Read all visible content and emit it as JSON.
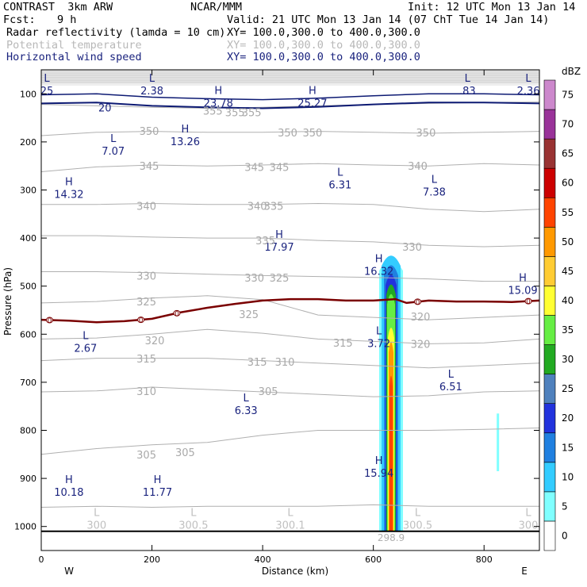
{
  "header": {
    "title": "CONTRAST  3km ARW",
    "source": "NCAR/MMM",
    "init": "Init: 12 UTC Mon 13 Jan 14",
    "fcst_label": "Fcst:",
    "fcst_value": "9 h",
    "valid": "Valid: 21 UTC Mon 13 Jan 14 (07 ChT Tue 14 Jan 14)",
    "fields": [
      {
        "name": "Radar reflectivity (lamda = 10 cm)",
        "xy": "XY= 100.0,300.0 to 400.0,300.0"
      },
      {
        "name": "Potential temperature",
        "xy": "XY= 100.0,300.0 to 400.0,300.0"
      },
      {
        "name": "Horizontal wind speed",
        "xy": "XY= 100.0,300.0 to 400.0,300.0"
      }
    ]
  },
  "chart_data": {
    "type": "cross-section",
    "xlabel": "Distance (km)",
    "ylabel": "Pressure (hPa)",
    "xlim": [
      0,
      900
    ],
    "ylim": [
      1050,
      50
    ],
    "x_ticks": [
      0,
      200,
      400,
      600,
      800
    ],
    "y_ticks": [
      100,
      200,
      300,
      400,
      500,
      600,
      700,
      800,
      900,
      1000
    ],
    "west_label": "W",
    "east_label": "E",
    "colorbar": {
      "unit": "dBZ",
      "levels": [
        0,
        5,
        10,
        15,
        20,
        25,
        30,
        35,
        40,
        45,
        50,
        55,
        60,
        65,
        70,
        75
      ],
      "colors": [
        "#ffffff",
        "#80ffff",
        "#33ccff",
        "#2080e0",
        "#2233dd",
        "#4f81bd",
        "#22aa22",
        "#66ee44",
        "#ffff33",
        "#ffcc33",
        "#ff9900",
        "#ff4400",
        "#cc0000",
        "#993333",
        "#993399",
        "#cc88cc"
      ]
    },
    "theta_contours": [
      {
        "value": 355,
        "p": [
          122,
          125,
          128,
          130,
          128,
          125,
          122,
          120,
          118,
          117
        ]
      },
      {
        "value": 350,
        "p": [
          187,
          180,
          178,
          180,
          180,
          178,
          180,
          182,
          180,
          178
        ]
      },
      {
        "value": 345,
        "p": [
          262,
          252,
          248,
          250,
          248,
          245,
          248,
          250,
          245,
          248
        ]
      },
      {
        "value": 340,
        "p": [
          330,
          330,
          328,
          330,
          330,
          328,
          330,
          340,
          345,
          340
        ]
      },
      {
        "value": 335,
        "p": [
          395,
          395,
          398,
          400,
          400,
          405,
          408,
          415,
          418,
          415
        ]
      },
      {
        "value": 330,
        "p": [
          470,
          470,
          472,
          475,
          478,
          480,
          482,
          485,
          490,
          490
        ]
      },
      {
        "value": 325,
        "p": [
          535,
          532,
          525,
          520,
          528,
          560,
          565,
          570,
          565,
          560
        ]
      },
      {
        "value": 320,
        "p": [
          610,
          608,
          600,
          590,
          598,
          610,
          615,
          620,
          618,
          610
        ]
      },
      {
        "value": 315,
        "p": [
          655,
          650,
          650,
          650,
          655,
          660,
          665,
          670,
          665,
          660
        ]
      },
      {
        "value": 310,
        "p": [
          720,
          718,
          710,
          715,
          720,
          725,
          730,
          728,
          720,
          718
        ]
      },
      {
        "value": 305,
        "p": [
          850,
          838,
          830,
          825,
          810,
          800,
          800,
          800,
          798,
          795
        ]
      },
      {
        "value": 300,
        "p": [
          960,
          958,
          960,
          958,
          958,
          958,
          955,
          958,
          958,
          958
        ]
      }
    ],
    "theta_x": [
      0,
      100,
      200,
      300,
      400,
      500,
      600,
      700,
      800,
      900
    ],
    "theta_label_values": [
      "355",
      "355",
      "355",
      "350",
      "350",
      "350",
      "350",
      "345",
      "345",
      "345",
      "340",
      "340",
      "340",
      "335",
      "335",
      "330",
      "330",
      "330",
      "325",
      "325",
      "325",
      "320",
      "320",
      "320",
      "315",
      "315",
      "315",
      "310",
      "310",
      "305",
      "305",
      "305"
    ],
    "zero_line": {
      "value": 0,
      "x": [
        0,
        50,
        100,
        150,
        200,
        250,
        300,
        350,
        400,
        450,
        500,
        550,
        600,
        640,
        660,
        700,
        750,
        800,
        850,
        900
      ],
      "p": [
        570,
        572,
        575,
        573,
        568,
        555,
        545,
        537,
        530,
        527,
        527,
        530,
        530,
        527,
        535,
        530,
        532,
        532,
        533,
        530
      ]
    },
    "wind_20": {
      "value": 20,
      "x": [
        0,
        100,
        200,
        300,
        400,
        500,
        600,
        700,
        800,
        900
      ],
      "p": [
        120,
        118,
        125,
        128,
        130,
        127,
        122,
        118,
        118,
        120
      ]
    },
    "wind_labels": [
      {
        "kind": "L",
        "value": "25",
        "x": 10,
        "p": 75
      },
      {
        "kind": "L",
        "value": "2.38",
        "x": 200,
        "p": 75
      },
      {
        "kind": "L",
        "value": ".83",
        "x": 770,
        "p": 75
      },
      {
        "kind": "L",
        "value": "2.36",
        "x": 880,
        "p": 75
      },
      {
        "kind": "H",
        "value": "23.78",
        "x": 320,
        "p": 100
      },
      {
        "kind": "H",
        "value": "25.27",
        "x": 490,
        "p": 100
      },
      {
        "kind": "L",
        "value": "7.07",
        "x": 130,
        "p": 200
      },
      {
        "kind": "H",
        "value": "13.26",
        "x": 260,
        "p": 180
      },
      {
        "kind": "H",
        "value": "14.32",
        "x": 50,
        "p": 290
      },
      {
        "kind": "L",
        "value": "6.31",
        "x": 540,
        "p": 270
      },
      {
        "kind": "L",
        "value": "7.38",
        "x": 710,
        "p": 285
      },
      {
        "kind": "H",
        "value": "17.97",
        "x": 430,
        "p": 400
      },
      {
        "kind": "H",
        "value": "16.32",
        "x": 610,
        "p": 450
      },
      {
        "kind": "H",
        "value": "15.09",
        "x": 870,
        "p": 490
      },
      {
        "kind": "L",
        "value": "2.67",
        "x": 80,
        "p": 610
      },
      {
        "kind": "L",
        "value": "3.72",
        "x": 610,
        "p": 600
      },
      {
        "kind": "L",
        "value": "6.51",
        "x": 740,
        "p": 690
      },
      {
        "kind": "L",
        "value": "6.33",
        "x": 370,
        "p": 740
      },
      {
        "kind": "H",
        "value": "15.94",
        "x": 610,
        "p": 870
      },
      {
        "kind": "H",
        "value": "10.18",
        "x": 50,
        "p": 910
      },
      {
        "kind": "H",
        "value": "11.77",
        "x": 210,
        "p": 910
      }
    ],
    "theta_ground_labels": [
      {
        "value": "300",
        "x": 100
      },
      {
        "value": "300.5",
        "x": 275
      },
      {
        "value": "300.1",
        "x": 450
      },
      {
        "value": "300.5",
        "x": 680
      },
      {
        "value": "300",
        "x": 880
      }
    ],
    "surface_label": "298.9",
    "echo": {
      "x_center": 632,
      "top_p": 425,
      "bottom_p": 1010
    },
    "echo_isolated": {
      "x": 825,
      "top_p": 765,
      "bottom_p": 885
    }
  }
}
